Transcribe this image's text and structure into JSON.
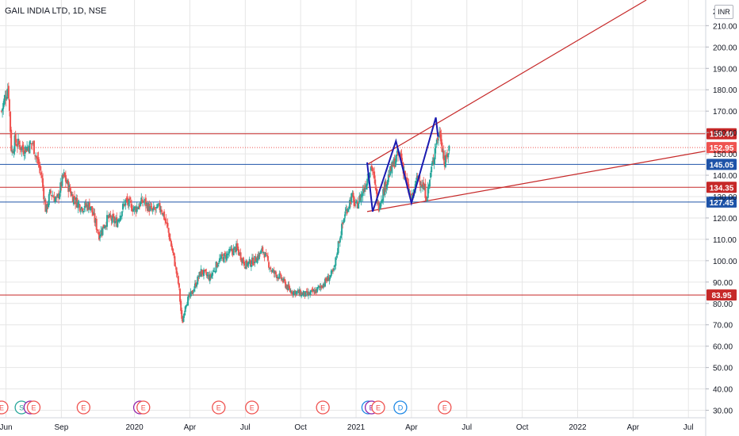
{
  "title": "GAIL INDIA LTD, 1D, NSE",
  "currency": "INR",
  "colors": {
    "up": "#26a69a",
    "down": "#ef5350",
    "red_line": "#c62828",
    "blue_line": "#1e53a8",
    "pattern": "#1a1ab0",
    "grid": "#e6e6e6"
  },
  "chart_data": {
    "type": "candlestick",
    "y_axis": {
      "ticks": [
        30,
        40,
        50,
        60,
        70,
        80,
        90,
        100,
        110,
        120,
        130,
        140,
        150,
        160,
        170,
        180,
        190,
        200,
        210
      ],
      "tick_labels": [
        "30.00",
        "40.00",
        "50.00",
        "60.00",
        "70.00",
        "80.00",
        "90.00",
        "100.00",
        "110.00",
        "120.00",
        "130.00",
        "140.00",
        "150.00",
        "160.00",
        "170.00",
        "180.00",
        "190.00",
        "200.00",
        "210.00"
      ],
      "top_tick_label": "2",
      "ylim": [
        26.5,
        222
      ]
    },
    "x_axis": {
      "labels": [
        {
          "t": 2019.42,
          "label": "Jun"
        },
        {
          "t": 2019.67,
          "label": "Sep"
        },
        {
          "t": 2020.0,
          "label": "2020"
        },
        {
          "t": 2020.25,
          "label": "Apr"
        },
        {
          "t": 2020.5,
          "label": "Jul"
        },
        {
          "t": 2020.75,
          "label": "Oct"
        },
        {
          "t": 2021.0,
          "label": "2021"
        },
        {
          "t": 2021.25,
          "label": "Apr"
        },
        {
          "t": 2021.5,
          "label": "Jul"
        },
        {
          "t": 2021.75,
          "label": "Oct"
        },
        {
          "t": 2022.0,
          "label": "2022"
        },
        {
          "t": 2022.25,
          "label": "Apr"
        },
        {
          "t": 2022.5,
          "label": "Jul"
        }
      ],
      "xlim": [
        2019.393,
        2022.578
      ]
    },
    "close_path": [
      [
        2019.4,
        170
      ],
      [
        2019.43,
        182
      ],
      [
        2019.445,
        150
      ],
      [
        2019.46,
        156
      ],
      [
        2019.5,
        152
      ],
      [
        2019.54,
        155
      ],
      [
        2019.58,
        140
      ],
      [
        2019.6,
        123
      ],
      [
        2019.62,
        132
      ],
      [
        2019.65,
        128
      ],
      [
        2019.68,
        140
      ],
      [
        2019.72,
        130
      ],
      [
        2019.76,
        125
      ],
      [
        2019.8,
        126
      ],
      [
        2019.84,
        112
      ],
      [
        2019.88,
        120
      ],
      [
        2019.92,
        118
      ],
      [
        2019.96,
        128
      ],
      [
        2020.0,
        124
      ],
      [
        2020.04,
        128
      ],
      [
        2020.08,
        123
      ],
      [
        2020.12,
        125
      ],
      [
        2020.15,
        115
      ],
      [
        2020.18,
        100
      ],
      [
        2020.2,
        88
      ],
      [
        2020.215,
        70
      ],
      [
        2020.23,
        80
      ],
      [
        2020.26,
        85
      ],
      [
        2020.3,
        95
      ],
      [
        2020.34,
        92
      ],
      [
        2020.38,
        100
      ],
      [
        2020.42,
        103
      ],
      [
        2020.46,
        106
      ],
      [
        2020.5,
        98
      ],
      [
        2020.54,
        100
      ],
      [
        2020.58,
        105
      ],
      [
        2020.62,
        95
      ],
      [
        2020.66,
        92
      ],
      [
        2020.7,
        86
      ],
      [
        2020.74,
        85
      ],
      [
        2020.78,
        84
      ],
      [
        2020.82,
        86
      ],
      [
        2020.86,
        90
      ],
      [
        2020.9,
        95
      ],
      [
        2020.92,
        108
      ],
      [
        2020.95,
        122
      ],
      [
        2020.98,
        130
      ],
      [
        2021.0,
        125
      ],
      [
        2021.04,
        135
      ],
      [
        2021.07,
        145
      ],
      [
        2021.1,
        125
      ],
      [
        2021.14,
        138
      ],
      [
        2021.18,
        148
      ],
      [
        2021.2,
        150
      ],
      [
        2021.23,
        135
      ],
      [
        2021.25,
        128
      ],
      [
        2021.28,
        140
      ],
      [
        2021.32,
        130
      ],
      [
        2021.36,
        155
      ],
      [
        2021.38,
        160
      ],
      [
        2021.4,
        145
      ],
      [
        2021.42,
        152.95
      ]
    ],
    "horizontal_levels": [
      {
        "price": 159.4,
        "label": "159.40",
        "color": "#c62828"
      },
      {
        "price": 152.95,
        "label": "152.95",
        "color": "#ef5350",
        "dotted": true
      },
      {
        "price": 145.05,
        "label": "145.05",
        "color": "#1e53a8"
      },
      {
        "price": 134.35,
        "label": "134.35",
        "color": "#c62828"
      },
      {
        "price": 127.45,
        "label": "127.45",
        "color": "#1e53a8"
      },
      {
        "price": 83.95,
        "label": "83.95",
        "color": "#c62828"
      }
    ],
    "trend_lines": [
      {
        "from": [
          2021.05,
          145
        ],
        "to": [
          2021.41,
          167
        ],
        "extend": true,
        "color": "#c62828"
      },
      {
        "from": [
          2021.05,
          123
        ],
        "to": [
          2021.32,
          128
        ],
        "extend": true,
        "color": "#c62828"
      }
    ],
    "pattern": {
      "points": [
        [
          2021.05,
          146
        ],
        [
          2021.075,
          123
        ],
        [
          2021.18,
          156
        ],
        [
          2021.25,
          127
        ],
        [
          2021.36,
          167
        ],
        [
          2021.37,
          158
        ]
      ],
      "color": "#1a1ab0"
    },
    "events": [
      {
        "t": 2019.4,
        "label": "E",
        "color": "#ef5350"
      },
      {
        "t": 2019.49,
        "label": "S",
        "color": "#26a69a"
      },
      {
        "t": 2019.53,
        "label": "E",
        "color": "#8e24aa"
      },
      {
        "t": 2019.545,
        "label": "E",
        "color": "#ef5350"
      },
      {
        "t": 2019.77,
        "label": "E",
        "color": "#ef5350"
      },
      {
        "t": 2020.025,
        "label": "E",
        "color": "#8e24aa"
      },
      {
        "t": 2020.04,
        "label": "E",
        "color": "#ef5350"
      },
      {
        "t": 2020.38,
        "label": "E",
        "color": "#ef5350"
      },
      {
        "t": 2020.53,
        "label": "E",
        "color": "#ef5350"
      },
      {
        "t": 2020.85,
        "label": "E",
        "color": "#ef5350"
      },
      {
        "t": 2021.055,
        "label": "D",
        "color": "#1e88e5"
      },
      {
        "t": 2021.07,
        "label": "E",
        "color": "#8e24aa"
      },
      {
        "t": 2021.1,
        "label": "E",
        "color": "#ef5350"
      },
      {
        "t": 2021.2,
        "label": "D",
        "color": "#1e88e5"
      },
      {
        "t": 2021.4,
        "label": "E",
        "color": "#ef5350"
      }
    ]
  }
}
